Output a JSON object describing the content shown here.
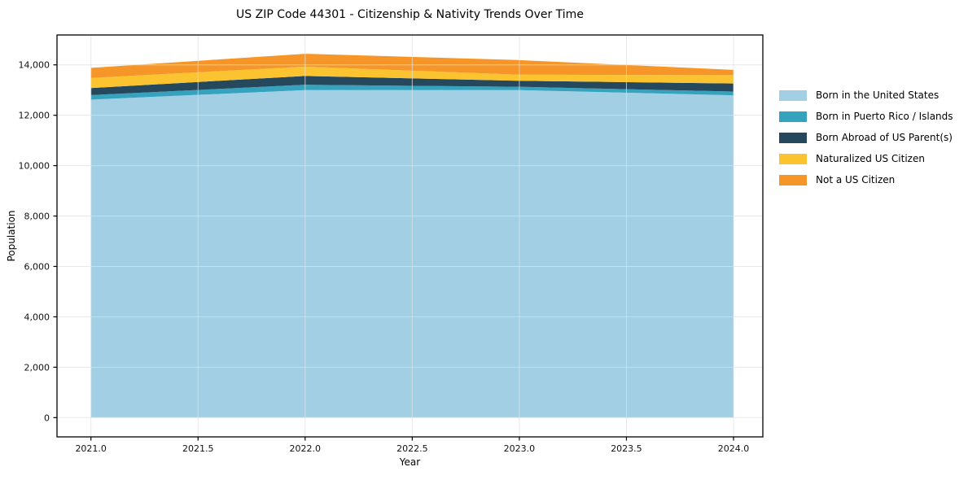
{
  "chart_data": {
    "type": "area",
    "stacked": true,
    "title": "US ZIP Code 44301 - Citizenship & Nativity Trends Over Time",
    "xlabel": "Year",
    "ylabel": "Population",
    "x": [
      2021,
      2022,
      2023,
      2024
    ],
    "series": [
      {
        "name": "Born in the United States",
        "color": "#a3cfe5",
        "values": [
          12620,
          13000,
          13000,
          12790
        ]
      },
      {
        "name": "Born in Puerto Rico / Islands",
        "color": "#35a2be",
        "values": [
          180,
          210,
          130,
          150
        ]
      },
      {
        "name": "Born Abroad of US Parent(s)",
        "color": "#26485c",
        "values": [
          280,
          350,
          240,
          320
        ]
      },
      {
        "name": "Naturalized US Citizen",
        "color": "#fcc331",
        "values": [
          400,
          370,
          240,
          330
        ]
      },
      {
        "name": "Not a US Citizen",
        "color": "#f79628",
        "values": [
          400,
          510,
          580,
          210
        ]
      }
    ],
    "totals": [
      13880,
      14440,
      14190,
      13800
    ],
    "xticks": [
      2021.0,
      2021.5,
      2022.0,
      2022.5,
      2023.0,
      2023.5,
      2024.0
    ],
    "xtick_labels": [
      "2021.0",
      "2021.5",
      "2022.0",
      "2022.5",
      "2023.0",
      "2023.5",
      "2024.0"
    ],
    "yticks": [
      0,
      2000,
      4000,
      6000,
      8000,
      10000,
      12000,
      14000
    ],
    "ytick_labels": [
      "0",
      "2,000",
      "4,000",
      "6,000",
      "8,000",
      "10,000",
      "12,000",
      "14,000"
    ],
    "xlim": [
      2020.84,
      2024.14
    ],
    "ylim": [
      -760,
      15190
    ],
    "grid": true,
    "legend_position": "right",
    "colors": {
      "grid": "#e0e0e0",
      "spine": "#000000",
      "background": "#ffffff"
    }
  }
}
